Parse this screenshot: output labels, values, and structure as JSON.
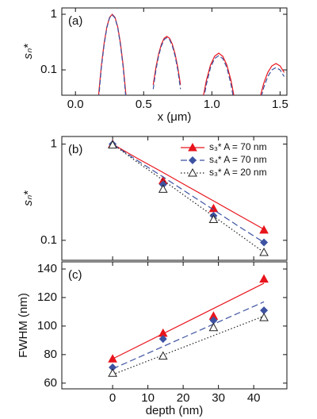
{
  "chart_data": [
    {
      "type": "line",
      "panel_label": "(a)",
      "x_label": "x (μm)",
      "y_label": "sₙ*",
      "log_y": true,
      "xlim": [
        -0.1,
        1.55
      ],
      "ylim": [
        0.035,
        1.3
      ],
      "xticks": [
        {
          "value": 0,
          "label": "0.0"
        },
        0.5,
        {
          "value": 1,
          "label": "1.0"
        },
        1.5
      ],
      "yticks": [
        0.1,
        1
      ],
      "x": [
        0.17,
        0.19,
        0.21,
        0.23,
        0.25,
        0.27,
        0.29,
        0.31,
        0.33,
        0.35,
        0.37,
        0.47,
        0.57,
        0.59,
        0.61,
        0.63,
        0.65,
        0.67,
        0.69,
        0.71,
        0.73,
        0.75,
        0.77,
        0.85,
        0.93,
        0.96,
        0.99,
        1.02,
        1.05,
        1.08,
        1.11,
        1.14,
        1.17,
        1.26,
        1.35,
        1.38,
        1.41,
        1.44,
        1.47,
        1.5,
        1.53
      ],
      "series": [
        {
          "color": "#e8141c",
          "dash": "none",
          "values": [
            0.036,
            0.12,
            0.3,
            0.59,
            0.88,
            1.0,
            0.88,
            0.59,
            0.3,
            0.12,
            0.036,
            null,
            0.054,
            0.111,
            0.195,
            0.29,
            0.37,
            0.4,
            0.37,
            0.29,
            0.195,
            0.111,
            0.054,
            null,
            0.027,
            0.065,
            0.122,
            0.176,
            0.2,
            0.176,
            0.122,
            0.065,
            0.027,
            null,
            0.03,
            0.057,
            0.09,
            0.118,
            0.13,
            0.118,
            0.09
          ]
        },
        {
          "color": "#3d52a1",
          "dash": "6 3",
          "values": [
            0.03,
            0.11,
            0.28,
            0.57,
            0.86,
            0.97,
            0.86,
            0.57,
            0.28,
            0.11,
            0.03,
            null,
            0.045,
            0.1,
            0.18,
            0.27,
            0.35,
            0.38,
            0.35,
            0.27,
            0.18,
            0.1,
            0.045,
            null,
            0.022,
            0.055,
            0.11,
            0.16,
            0.18,
            0.16,
            0.11,
            0.055,
            0.022,
            null,
            0.025,
            0.048,
            0.076,
            0.1,
            0.11,
            0.1,
            0.076
          ]
        }
      ]
    },
    {
      "type": "scatter",
      "panel_label": "(b)",
      "y_label": "sₙ*",
      "log_y": true,
      "legend": "upper right",
      "show_xtick_labels": false,
      "xlim": [
        -14.4,
        49.4
      ],
      "ylim": [
        0.062,
        1.2
      ],
      "xticks": [
        0,
        10,
        20,
        30,
        40
      ],
      "yticks": [
        0.1,
        1
      ],
      "x": [
        0,
        14.3,
        28.6,
        42.9
      ],
      "fit_x": [
        0,
        7,
        14.3,
        21.4,
        28.6,
        35.7,
        42.9
      ],
      "series": [
        {
          "name": "s₃*  A = 70 nm",
          "color": "#e8141c",
          "marker": "triangle",
          "dash": "none",
          "values": [
            1.0,
            0.417,
            0.214,
            0.128
          ],
          "fit_values": [
            1,
            0.712,
            0.507,
            0.361,
            0.257,
            0.183,
            0.13
          ]
        },
        {
          "name": "s₄*  A = 70 nm",
          "color": "#3d52a1",
          "marker": "diamond",
          "dash": "8 4",
          "values": [
            1.0,
            0.38,
            0.18,
            0.095
          ],
          "fit_values": [
            1,
            0.675,
            0.456,
            0.308,
            0.208,
            0.14,
            0.095
          ]
        },
        {
          "name": "s₃*  A = 20 nm",
          "color": "#222222",
          "marker": "triangle-open",
          "dash": "1.5 2.5",
          "values": [
            0.98,
            0.34,
            0.165,
            0.075
          ],
          "fit_values": [
            1,
            0.649,
            0.422,
            0.274,
            0.178,
            0.116,
            0.075
          ]
        }
      ]
    },
    {
      "type": "scatter",
      "panel_label": "(c)",
      "x_label": "depth (nm)",
      "y_label": "FWHM (nm)",
      "log_y": false,
      "xlim": [
        -14.4,
        49.4
      ],
      "ylim": [
        56,
        145
      ],
      "xticks": [
        0,
        10,
        20,
        30,
        40
      ],
      "yticks": [
        60,
        80,
        100,
        120,
        140
      ],
      "x": [
        0,
        14.3,
        28.6,
        42.9
      ],
      "fit_x": [
        0,
        42.9
      ],
      "series": [
        {
          "color": "#e8141c",
          "marker": "triangle",
          "dash": "none",
          "values": [
            77,
            95,
            107,
            133
          ],
          "fit_values": [
            77,
            130
          ]
        },
        {
          "color": "#3d52a1",
          "marker": "diamond",
          "dash": "8 4",
          "values": [
            71,
            91,
            104,
            111
          ],
          "fit_values": [
            70,
            117
          ]
        },
        {
          "color": "#222222",
          "marker": "triangle-open",
          "dash": "1.5 2.5",
          "values": [
            67,
            79,
            99,
            106
          ],
          "fit_values": [
            66,
            107
          ]
        }
      ]
    }
  ]
}
